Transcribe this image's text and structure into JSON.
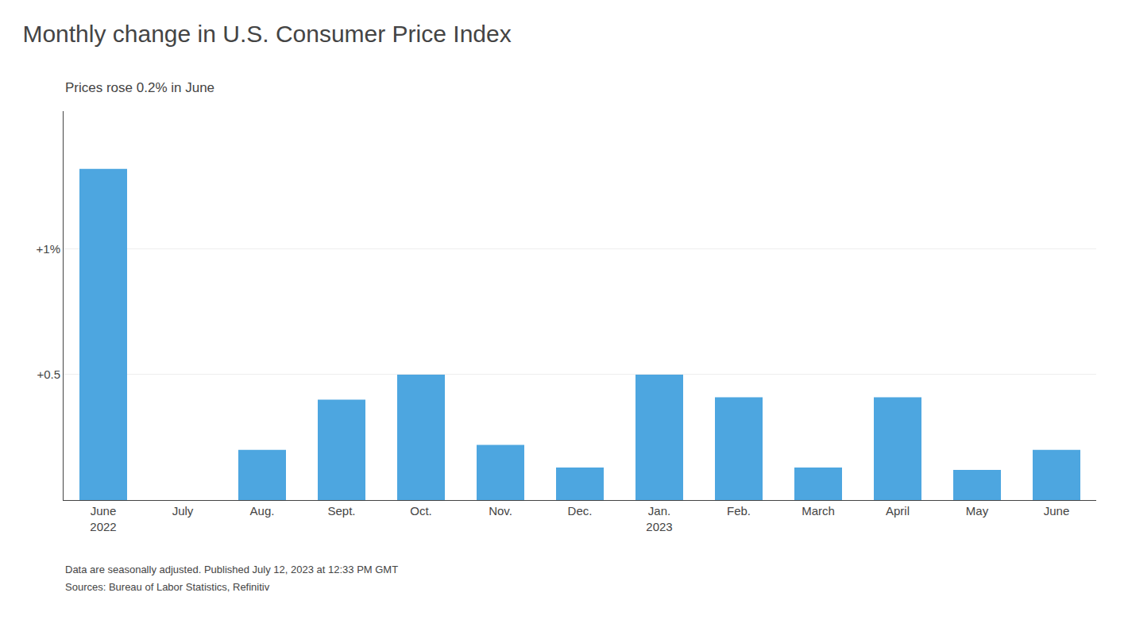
{
  "chart_data": {
    "type": "bar",
    "title": "Monthly change in U.S. Consumer Price Index",
    "subtitle": "Prices rose 0.2% in June",
    "annotations": [
      "Data are seasonally adjusted. Published July 12, 2023 at 12:33 PM GMT",
      "Sources: Bureau of Labor Statistics, Refinitiv"
    ],
    "categories": [
      "June\n2022",
      "July",
      "Aug.",
      "Sept.",
      "Oct.",
      "Nov.",
      "Dec.",
      "Jan.\n2023",
      "Feb.",
      "March",
      "April",
      "May",
      "June"
    ],
    "values": [
      1.32,
      0.0,
      0.2,
      0.4,
      0.5,
      0.22,
      0.13,
      0.5,
      0.41,
      0.13,
      0.41,
      0.12,
      0.2
    ],
    "color": "#4da6e0",
    "ylim": [
      0,
      1.55
    ],
    "yticks": [
      {
        "value": 0.5,
        "label": "+0.5"
      },
      {
        "value": 1.0,
        "label": "+1%"
      }
    ],
    "grid": true
  }
}
